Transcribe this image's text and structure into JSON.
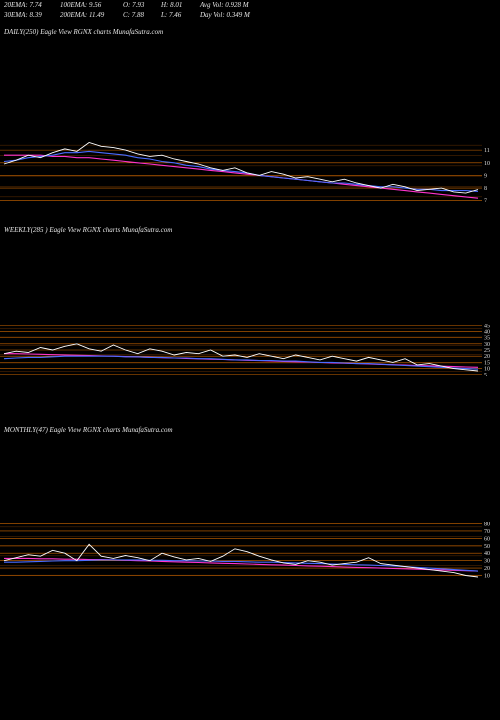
{
  "stats": [
    {
      "label": "20EMA:",
      "value": "7.74"
    },
    {
      "label": "100EMA:",
      "value": "9.56"
    },
    {
      "label": "O:",
      "value": "7.93"
    },
    {
      "label": "H:",
      "value": "8.01"
    },
    {
      "label": "Avg Vol:",
      "value": "0.928  M"
    },
    {
      "label": "30EMA:",
      "value": "8.39"
    },
    {
      "label": "200EMA:",
      "value": "11.49"
    },
    {
      "label": "C:",
      "value": "7.88"
    },
    {
      "label": "L:",
      "value": "7.46"
    },
    {
      "label": "Day Vol:",
      "value": "0.349 M"
    }
  ],
  "panels": [
    {
      "title": "DAILY(250) Eagle   View  RGNX  charts MunafaSutra.com"
    },
    {
      "title": "WEEKLY(285                    ) Eagle   View  RGNX  charts MunafaSutra.com"
    },
    {
      "title": "MONTHLY(47) Eagle   View  RGNX  charts MunafaSutra.com"
    }
  ],
  "colors": {
    "price": "#ffffff",
    "price_alt": "#f5deb3",
    "ema_blue": "#4a6cff",
    "ema_magenta": "#ff33cc",
    "ema_green": "#33cc33",
    "levels": "#cc6600"
  },
  "chart_data": [
    {
      "type": "line",
      "title": "DAILY(250) Eagle   View  RGNX  charts MunafaSutra.com",
      "right_axis_labels": [
        "11",
        "10",
        "9",
        "8",
        "7"
      ],
      "series": [
        {
          "values": [
            9.9,
            10.2,
            10.6,
            10.4,
            10.8,
            11.1,
            10.9,
            11.6,
            11.3,
            11.2,
            11.0,
            10.7,
            10.5,
            10.6,
            10.3,
            10.1,
            9.9,
            9.6,
            9.4,
            9.6,
            9.2,
            9.0,
            9.3,
            9.1,
            8.8,
            8.9,
            8.7,
            8.5,
            8.7,
            8.4,
            8.2,
            8.0,
            8.3,
            8.1,
            7.8,
            7.9,
            8.0,
            7.7,
            7.6,
            7.88
          ]
        },
        {
          "values": [
            10.1,
            10.2,
            10.4,
            10.5,
            10.6,
            10.8,
            10.8,
            10.9,
            10.8,
            10.7,
            10.6,
            10.4,
            10.3,
            10.1,
            10.0,
            9.8,
            9.7,
            9.5,
            9.4,
            9.3,
            9.2,
            9.0,
            8.9,
            8.8,
            8.7,
            8.6,
            8.5,
            8.4,
            8.4,
            8.3,
            8.2,
            8.1,
            8.1,
            8.0,
            7.9,
            7.9,
            7.8,
            7.8,
            7.8,
            7.74
          ]
        },
        {
          "values": [
            10.6,
            10.6,
            10.6,
            10.6,
            10.5,
            10.5,
            10.4,
            10.4,
            10.3,
            10.2,
            10.1,
            10.0,
            9.9,
            9.8,
            9.7,
            9.6,
            9.5,
            9.4,
            9.3,
            9.2,
            9.1,
            9.0,
            8.9,
            8.8,
            8.7,
            8.6,
            8.5,
            8.4,
            8.3,
            8.2,
            8.1,
            8.0,
            7.9,
            7.8,
            7.7,
            7.6,
            7.5,
            7.4,
            7.3,
            7.2
          ]
        }
      ]
    },
    {
      "type": "line",
      "title": "WEEKLY(285                    ) Eagle   View  RGNX  charts MunafaSutra.com",
      "right_axis_labels": [
        "45",
        "40",
        "35",
        "30",
        "25",
        "20",
        "15",
        "10",
        "5"
      ],
      "series": [
        {
          "values": [
            22,
            24,
            23,
            27,
            25,
            28,
            30,
            26,
            24,
            29,
            25,
            22,
            26,
            24,
            21,
            23,
            22,
            25,
            20,
            21,
            19,
            22,
            20,
            18,
            21,
            19,
            17,
            20,
            18,
            16,
            19,
            17,
            15,
            18,
            13,
            14,
            12,
            10,
            9,
            8
          ]
        },
        {
          "values": [
            18,
            18.5,
            19,
            19,
            19.5,
            20,
            20,
            20,
            20,
            20,
            19.5,
            19.5,
            19,
            19,
            18.5,
            18.5,
            18,
            18,
            17.5,
            17,
            17,
            16.5,
            16.5,
            16,
            16,
            15.5,
            15,
            15,
            14.5,
            14,
            14,
            13.5,
            13,
            12.5,
            12,
            11.5,
            11,
            10.5,
            10,
            9.5
          ]
        },
        {
          "values": [
            22,
            22,
            21.8,
            21.5,
            21.2,
            21,
            20.7,
            20.5,
            20.2,
            20,
            19.7,
            19.4,
            19.1,
            18.8,
            18.5,
            18.2,
            17.9,
            17.6,
            17.3,
            17,
            16.7,
            16.4,
            16.1,
            15.8,
            15.5,
            15.2,
            14.9,
            14.6,
            14.3,
            14,
            13.7,
            13.4,
            13.1,
            12.8,
            12.5,
            12.2,
            11.9,
            11.6,
            11.3,
            11
          ]
        }
      ]
    },
    {
      "type": "line",
      "title": "MONTHLY(47) Eagle   View  RGNX  charts MunafaSutra.com",
      "right_axis_labels": [
        "80",
        "70",
        "60",
        "50",
        "40",
        "30",
        "20",
        "10"
      ],
      "series": [
        {
          "values": [
            30,
            34,
            38,
            36,
            44,
            40,
            30,
            52,
            36,
            33,
            37,
            34,
            30,
            40,
            35,
            31,
            33,
            29,
            36,
            46,
            42,
            36,
            31,
            27,
            25,
            30,
            28,
            24,
            26,
            28,
            34,
            26,
            24,
            22,
            20,
            18,
            16,
            14,
            10,
            8
          ]
        },
        {
          "values": [
            28,
            28,
            28.5,
            29,
            29.5,
            30,
            30,
            30.5,
            31,
            31,
            31,
            31,
            30.5,
            30.5,
            30,
            30,
            29.5,
            29.5,
            29,
            29,
            28.5,
            28,
            28,
            27.5,
            27,
            26.5,
            26,
            25.5,
            25,
            24.5,
            24,
            23.5,
            23,
            22,
            21,
            20,
            19,
            18,
            17,
            16
          ]
        },
        {
          "values": [
            33,
            33,
            33,
            32.5,
            32.5,
            32,
            32,
            31.5,
            31.5,
            31,
            30.5,
            30,
            29.5,
            29,
            28.5,
            28,
            27.5,
            27,
            26.5,
            26,
            25.5,
            25,
            24.5,
            24,
            23.5,
            23,
            22.5,
            22,
            21.5,
            21,
            20.5,
            20,
            19.5,
            19,
            18.5,
            18,
            17.5,
            17,
            16.5,
            16
          ]
        }
      ]
    }
  ]
}
